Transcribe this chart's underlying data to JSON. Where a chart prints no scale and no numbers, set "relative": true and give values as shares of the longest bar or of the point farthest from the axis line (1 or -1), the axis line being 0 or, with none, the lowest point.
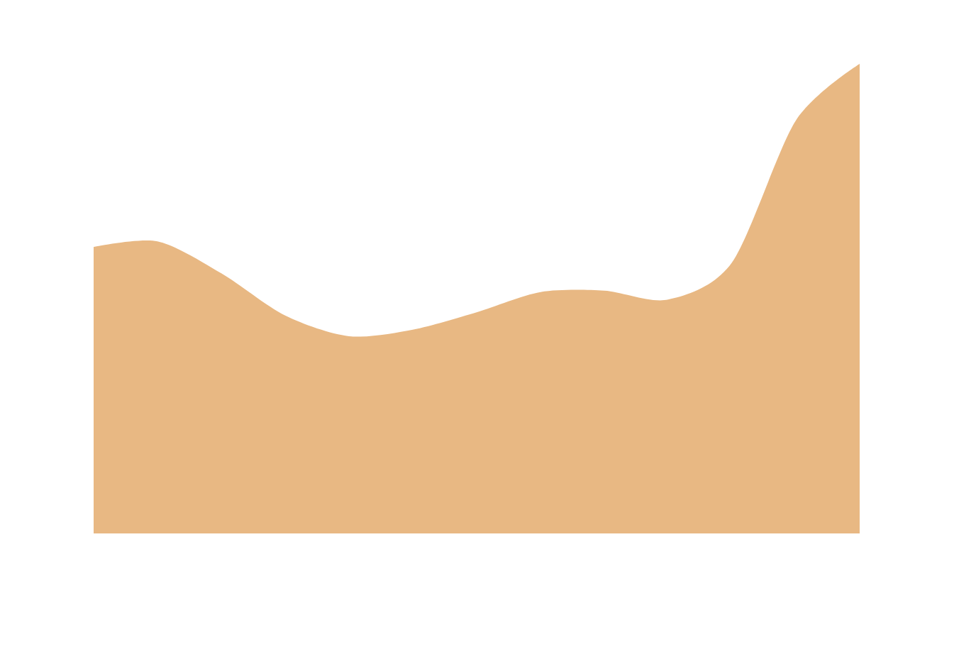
{
  "chart_data": {
    "type": "area",
    "relative": true,
    "categories": [
      null,
      null,
      null,
      null,
      null,
      null,
      null,
      null,
      null,
      null,
      null,
      null,
      null
    ],
    "values": [
      0.61,
      0.622,
      0.554,
      0.464,
      0.42,
      0.434,
      0.471,
      0.514,
      0.517,
      0.498,
      0.577,
      0.879,
      1
    ],
    "color": "#e8b883"
  }
}
